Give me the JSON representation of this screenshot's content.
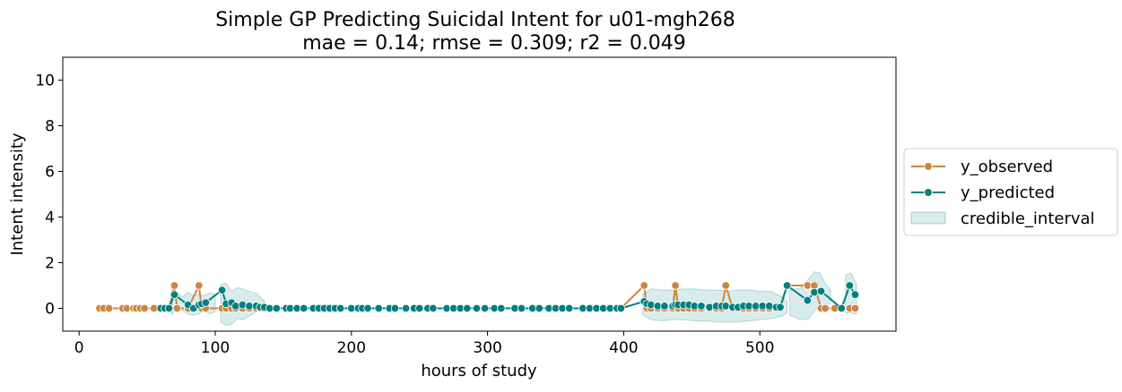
{
  "chart_data": {
    "type": "line",
    "title": "Simple GP Predicting Suicidal Intent for u01-mgh268",
    "subtitle": "mae = 0.14; rmse = 0.309; r2 = 0.049",
    "xlabel": "hours of study",
    "ylabel": "Intent intensity",
    "xlim": [
      -12,
      600
    ],
    "ylim": [
      -1,
      11
    ],
    "xticks": [
      0,
      100,
      200,
      300,
      400,
      500
    ],
    "yticks": [
      0,
      2,
      4,
      6,
      8,
      10
    ],
    "grid": false,
    "legend_position": "outside-right",
    "series": [
      {
        "name": "y_observed",
        "color": "#cd853f",
        "marker": "circle",
        "x": [
          15,
          18,
          22,
          32,
          35,
          40,
          42,
          45,
          48,
          55,
          60,
          63,
          66,
          70,
          72,
          80,
          88,
          90,
          93,
          105,
          108,
          112,
          115,
          120,
          125,
          130,
          133,
          136,
          140,
          145,
          152,
          155,
          160,
          165,
          172,
          176,
          180,
          184,
          188,
          192,
          200,
          205,
          208,
          212,
          220,
          228,
          232,
          240,
          246,
          250,
          256,
          260,
          270,
          275,
          280,
          285,
          292,
          298,
          305,
          310,
          320,
          325,
          333,
          338,
          345,
          350,
          355,
          360,
          370,
          375,
          380,
          385,
          390,
          395,
          398,
          415,
          417,
          420,
          425,
          430,
          436,
          438,
          440,
          444,
          448,
          452,
          457,
          463,
          468,
          472,
          475,
          480,
          484,
          488,
          492,
          497,
          502,
          507,
          512,
          515,
          520,
          535,
          540,
          545,
          548,
          555,
          560,
          566,
          570
        ],
        "y": [
          0,
          0,
          0,
          0,
          0,
          0,
          0,
          0,
          0,
          0,
          0,
          0,
          0,
          1,
          0,
          0,
          1,
          0,
          0,
          0,
          0,
          0,
          0,
          0,
          0,
          0,
          0,
          0,
          0,
          0,
          0,
          0,
          0,
          0,
          0,
          0,
          0,
          0,
          0,
          0,
          0,
          0,
          0,
          0,
          0,
          0,
          0,
          0,
          0,
          0,
          0,
          0,
          0,
          0,
          0,
          0,
          0,
          0,
          0,
          0,
          0,
          0,
          0,
          0,
          0,
          0,
          0,
          0,
          0,
          0,
          0,
          0,
          0,
          0,
          0,
          1,
          0,
          0,
          0,
          0,
          0,
          1,
          0,
          0,
          0,
          0,
          0,
          0,
          0,
          0,
          1,
          0,
          0,
          0,
          0,
          0,
          0,
          0,
          0,
          0,
          1,
          1,
          1,
          0,
          0,
          0,
          0,
          0,
          0
        ]
      },
      {
        "name": "y_predicted",
        "color": "#008080",
        "marker": "circle",
        "x": [
          60,
          63,
          66,
          70,
          80,
          84,
          88,
          90,
          93,
          105,
          108,
          112,
          115,
          120,
          125,
          130,
          133,
          136,
          140,
          145,
          152,
          155,
          160,
          165,
          172,
          176,
          180,
          184,
          188,
          192,
          200,
          205,
          208,
          212,
          220,
          228,
          232,
          240,
          246,
          250,
          256,
          260,
          270,
          275,
          280,
          285,
          292,
          298,
          305,
          310,
          320,
          325,
          333,
          338,
          345,
          350,
          355,
          360,
          370,
          375,
          380,
          385,
          390,
          395,
          398,
          415,
          417,
          420,
          425,
          430,
          436,
          438,
          440,
          444,
          448,
          452,
          457,
          463,
          468,
          472,
          475,
          480,
          484,
          488,
          492,
          497,
          502,
          507,
          512,
          515,
          520,
          535,
          540,
          545,
          560,
          566,
          570
        ],
        "y": [
          0,
          0,
          0,
          0.6,
          0.15,
          0,
          0.15,
          0.2,
          0.25,
          0.8,
          0.2,
          0.25,
          0.1,
          0.15,
          0.1,
          0.1,
          0.05,
          0.05,
          0,
          0,
          0,
          0,
          0,
          0,
          0,
          0,
          0,
          0,
          0,
          0,
          0,
          0,
          0,
          0,
          0,
          0,
          0,
          0,
          0,
          0,
          0,
          0,
          0,
          0,
          0,
          0,
          0,
          0,
          0,
          0,
          0,
          0,
          0,
          0,
          0,
          0,
          0,
          0,
          0,
          0,
          0,
          0,
          0,
          0,
          0,
          0.3,
          0.2,
          0.15,
          0.1,
          0.1,
          0.1,
          0.15,
          0.15,
          0.15,
          0.15,
          0.1,
          0.1,
          0.05,
          0.1,
          0.1,
          0.1,
          0.05,
          0.05,
          0.1,
          0.1,
          0.1,
          0.1,
          0.1,
          0.05,
          0.05,
          1,
          0.35,
          0.7,
          0.75,
          0,
          1,
          0.6
        ]
      },
      {
        "name": "credible_interval",
        "color": "#008080",
        "type": "area",
        "bands": [
          {
            "x": [
              68,
              72,
              76,
              80,
              84,
              88,
              92,
              96,
              100
            ],
            "lower": [
              -0.25,
              -0.05,
              -0.1,
              -0.25,
              -0.3,
              -0.25,
              -0.1,
              -0.25,
              -0.15
            ],
            "upper": [
              0.9,
              0.7,
              0.5,
              0.7,
              0.55,
              0.6,
              0.55,
              0.7,
              0.6
            ]
          },
          {
            "x": [
              104,
              108,
              112,
              116,
              120,
              125,
              130,
              136
            ],
            "lower": [
              -0.6,
              -0.75,
              -0.7,
              -0.45,
              -0.5,
              -0.35,
              -0.15,
              0
            ],
            "upper": [
              1.05,
              1.1,
              0.75,
              0.9,
              0.85,
              0.75,
              0.65,
              0.35
            ]
          },
          {
            "x": [
              414,
              420,
              428,
              436,
              444,
              452,
              460,
              468,
              476,
              484,
              492,
              500,
              508,
              516,
              520
            ],
            "lower": [
              -0.3,
              -0.5,
              -0.55,
              -0.5,
              -0.5,
              -0.55,
              -0.55,
              -0.6,
              -0.6,
              -0.6,
              -0.55,
              -0.5,
              -0.45,
              -0.35,
              -0.2
            ],
            "upper": [
              0.6,
              0.85,
              0.8,
              0.8,
              0.85,
              0.85,
              0.8,
              0.8,
              0.75,
              0.8,
              0.8,
              0.75,
              0.75,
              0.5,
              0.3
            ]
          },
          {
            "x": [
              522,
              530,
              536,
              540,
              544,
              548,
              552
            ],
            "lower": [
              -0.3,
              -0.5,
              -0.45,
              -0.1,
              0.05,
              -0.05,
              0.3
            ],
            "upper": [
              0.8,
              0.9,
              1.3,
              1.6,
              1.55,
              1.1,
              0.8
            ]
          },
          {
            "x": [
              563,
              567,
              571
            ],
            "lower": [
              -0.2,
              -0.2,
              -0.25
            ],
            "upper": [
              1.45,
              1.55,
              1.05
            ]
          }
        ]
      }
    ]
  }
}
